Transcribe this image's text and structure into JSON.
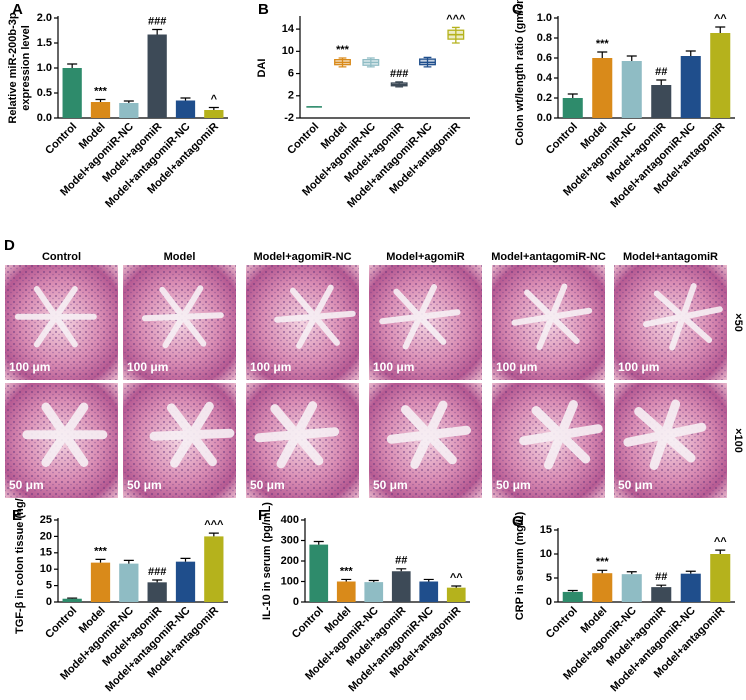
{
  "chart_data": [
    {
      "type": "bar",
      "panel": "A",
      "ylabel": [
        "Relative miR-200b-3p",
        "expression level"
      ],
      "categories": [
        "Control",
        "Model",
        "Model+agomiR-NC",
        "Model+agomiR",
        "Model+antagomiR-NC",
        "Model+antagomiR"
      ],
      "colors": [
        "#2e8b6b",
        "#d98a1a",
        "#8fbcc4",
        "#3d4a57",
        "#1f4e8c",
        "#b5b21c"
      ],
      "values": [
        1.0,
        0.32,
        0.3,
        1.67,
        0.35,
        0.16
      ],
      "errors": [
        0.08,
        0.05,
        0.04,
        0.1,
        0.05,
        0.05
      ],
      "annotations": [
        null,
        "***",
        null,
        "###",
        null,
        "^"
      ],
      "ylim": [
        0,
        2
      ],
      "yticks": [
        {
          "value": 0,
          "label": "0.0"
        },
        0.5,
        {
          "value": 1,
          "label": "1.0"
        },
        1.5,
        {
          "value": 2,
          "label": "2.0"
        }
      ]
    },
    {
      "type": "box",
      "panel": "B",
      "ylabel": [
        "DAI"
      ],
      "categories": [
        "Control",
        "Model",
        "Model+agomiR-NC",
        "Model+agomiR",
        "Model+antagomiR-NC",
        "Model+antagomiR"
      ],
      "colors": [
        "#2e8b6b",
        "#d98a1a",
        "#8fbcc4",
        "#3d4a57",
        "#1f4e8c",
        "#b5b21c"
      ],
      "min": [
        0,
        7.2,
        7.2,
        3.6,
        7.2,
        11.5
      ],
      "q1": [
        0,
        7.6,
        7.5,
        3.8,
        7.6,
        12.2
      ],
      "median": [
        0,
        8,
        8,
        4,
        8,
        13
      ],
      "q3": [
        0,
        8.5,
        8.5,
        4.3,
        8.6,
        13.8
      ],
      "max": [
        0,
        8.8,
        8.8,
        4.5,
        8.9,
        14.3
      ],
      "annotations": [
        null,
        "***",
        null,
        "###",
        null,
        "^^^"
      ],
      "ylim": [
        -2,
        16
      ],
      "yticks": [
        -2,
        2,
        6,
        10,
        14
      ]
    },
    {
      "type": "bar",
      "panel": "C",
      "ylabel": [
        "Colon wt/length ratio (gm/cm)"
      ],
      "categories": [
        "Control",
        "Model",
        "Model+agomiR-NC",
        "Model+agomiR",
        "Model+antagomiR-NC",
        "Model+antagomiR"
      ],
      "colors": [
        "#2e8b6b",
        "#d98a1a",
        "#8fbcc4",
        "#3d4a57",
        "#1f4e8c",
        "#b5b21c"
      ],
      "values": [
        0.2,
        0.6,
        0.57,
        0.33,
        0.62,
        0.85
      ],
      "errors": [
        0.04,
        0.06,
        0.05,
        0.05,
        0.05,
        0.06
      ],
      "annotations": [
        null,
        "***",
        null,
        "##",
        null,
        "^^"
      ],
      "ylim": [
        0,
        1
      ],
      "yticks": [
        {
          "value": 0,
          "label": "0.0"
        },
        0.2,
        0.4,
        0.6,
        0.8,
        {
          "value": 1,
          "label": "1.0"
        }
      ]
    },
    {
      "type": "bar",
      "panel": "E",
      "ylabel": [
        "TGF-β in colon tissue (ng/g)"
      ],
      "categories": [
        "Control",
        "Model",
        "Model+agomiR-NC",
        "Model+agomiR",
        "Model+antagomiR-NC",
        "Model+antagomiR"
      ],
      "colors": [
        "#2e8b6b",
        "#d98a1a",
        "#8fbcc4",
        "#3d4a57",
        "#1f4e8c",
        "#b5b21c"
      ],
      "values": [
        1,
        12,
        11.7,
        6,
        12.3,
        20
      ],
      "errors": [
        0.2,
        1,
        1,
        0.7,
        1,
        1
      ],
      "annotations": [
        null,
        "***",
        null,
        "###",
        null,
        "^^^"
      ],
      "ylim": [
        0,
        25
      ],
      "yticks": [
        0,
        5,
        10,
        15,
        20,
        25
      ]
    },
    {
      "type": "bar",
      "panel": "F",
      "ylabel": [
        "IL-10 in serum (pg/mL)"
      ],
      "categories": [
        "Control",
        "Model",
        "Model+agomiR-NC",
        "Model+agomiR",
        "Model+antagomiR-NC",
        "Model+antagomiR"
      ],
      "colors": [
        "#2e8b6b",
        "#d98a1a",
        "#8fbcc4",
        "#3d4a57",
        "#1f4e8c",
        "#b5b21c"
      ],
      "values": [
        280,
        100,
        97,
        150,
        100,
        70
      ],
      "errors": [
        15,
        10,
        8,
        12,
        10,
        8
      ],
      "annotations": [
        null,
        "***",
        null,
        "##",
        null,
        "^^"
      ],
      "ylim": [
        0,
        400
      ],
      "yticks": [
        0,
        100,
        200,
        300,
        400
      ]
    },
    {
      "type": "bar",
      "panel": "G",
      "ylabel": [
        "CRP in serum (mg/L)"
      ],
      "categories": [
        "Control",
        "Model",
        "Model+agomiR-NC",
        "Model+agomiR",
        "Model+antagomiR-NC",
        "Model+antagomiR"
      ],
      "colors": [
        "#2e8b6b",
        "#d98a1a",
        "#8fbcc4",
        "#3d4a57",
        "#1f4e8c",
        "#b5b21c"
      ],
      "values": [
        2.1,
        6,
        5.8,
        3.1,
        5.9,
        10
      ],
      "errors": [
        0.3,
        0.6,
        0.5,
        0.4,
        0.5,
        0.8
      ],
      "annotations": [
        null,
        "***",
        null,
        "##",
        null,
        "^^"
      ],
      "ylim": [
        0,
        15
      ],
      "yticks": [
        0,
        5,
        10,
        15
      ]
    }
  ],
  "histology": {
    "panel": "D",
    "columns": [
      "Control",
      "Model",
      "Model+agomiR-NC",
      "Model+agomiR",
      "Model+antagomiR-NC",
      "Model+antagomiR"
    ],
    "magnifications": [
      "×50",
      "×100"
    ],
    "scale_bars": [
      "100 μm",
      "50 μm"
    ]
  }
}
